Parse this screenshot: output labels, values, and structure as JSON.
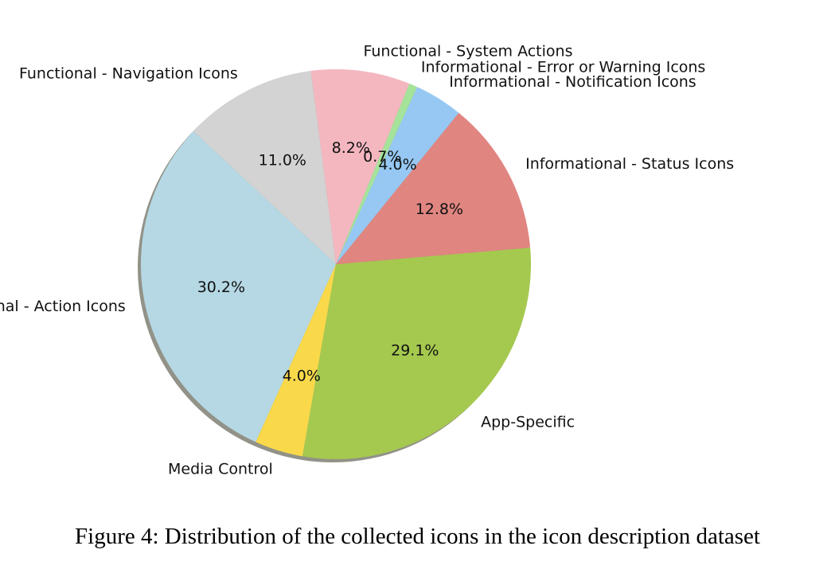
{
  "chart_data": {
    "type": "pie",
    "slices": [
      {
        "label": "Functional - Action Icons",
        "value": 30.2,
        "pct_label": "30.2%",
        "color": "#b5d8e4"
      },
      {
        "label": "Media Control",
        "value": 4.0,
        "pct_label": "4.0%",
        "color": "#f9d94a"
      },
      {
        "label": "App-Specific",
        "value": 29.1,
        "pct_label": "29.1%",
        "color": "#a5c94f"
      },
      {
        "label": "Informational - Status Icons",
        "value": 12.8,
        "pct_label": "12.8%",
        "color": "#e08580"
      },
      {
        "label": "Informational - Notification Icons",
        "value": 4.0,
        "pct_label": "4.0%",
        "color": "#96c8f3"
      },
      {
        "label": "Informational - Error or Warning Icons",
        "value": 0.7,
        "pct_label": "0.7%",
        "color": "#a5e39a"
      },
      {
        "label": "Functional - System Actions",
        "value": 8.2,
        "pct_label": "8.2%",
        "color": "#f4b7c0"
      },
      {
        "label": "Functional - Navigation Icons",
        "value": 11.0,
        "pct_label": "11.0%",
        "color": "#d3d3d3"
      }
    ],
    "shadow": true,
    "legend": "none"
  },
  "caption": "Figure 4: Distribution of the collected icons in the icon description dataset"
}
